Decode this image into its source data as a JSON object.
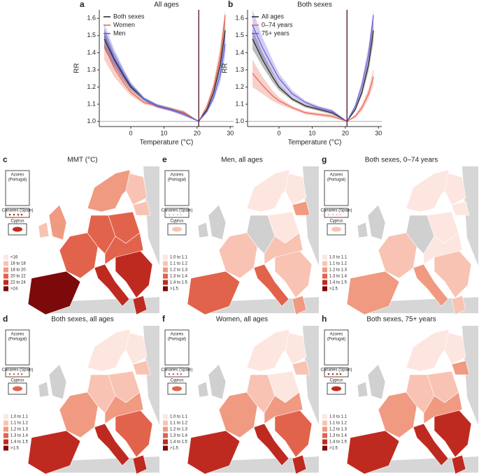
{
  "chart_data": [
    {
      "type": "line",
      "label": "a",
      "title": "All ages",
      "xlabel": "Temperature (°C)",
      "ylabel": "RR",
      "x": [
        -8,
        -5,
        -2,
        0,
        4,
        8,
        12,
        16,
        20.5,
        23,
        25,
        27,
        28.5
      ],
      "xlim": [
        -9.5,
        31
      ],
      "xticks": [
        0,
        10,
        20,
        30
      ],
      "ylim": [
        0.97,
        1.65
      ],
      "yticks": [
        {
          "value": 1,
          "label": "1.0"
        },
        1.1,
        1.2,
        1.3,
        1.4,
        1.5,
        1.6
      ],
      "reference_x": 20.5,
      "reference_y": 1,
      "series": [
        {
          "name": "Both sexes",
          "color": "#222222",
          "values": [
            1.48,
            1.36,
            1.26,
            1.2,
            1.13,
            1.09,
            1.07,
            1.05,
            1.0,
            1.07,
            1.17,
            1.33,
            1.53
          ],
          "lower": [
            1.42,
            1.32,
            1.23,
            1.18,
            1.12,
            1.08,
            1.06,
            1.04,
            1.0,
            1.06,
            1.15,
            1.29,
            1.46
          ],
          "upper": [
            1.54,
            1.4,
            1.29,
            1.22,
            1.14,
            1.1,
            1.08,
            1.06,
            1.0,
            1.08,
            1.19,
            1.37,
            1.6
          ]
        },
        {
          "name": "Women",
          "color": "#e8604c",
          "values": [
            1.44,
            1.31,
            1.22,
            1.17,
            1.11,
            1.09,
            1.07,
            1.05,
            1.0,
            1.09,
            1.2,
            1.38,
            1.62
          ],
          "lower": [
            1.36,
            1.26,
            1.19,
            1.15,
            1.1,
            1.08,
            1.06,
            1.04,
            1.0,
            1.08,
            1.17,
            1.32,
            1.52
          ],
          "upper": [
            1.52,
            1.36,
            1.25,
            1.19,
            1.12,
            1.1,
            1.08,
            1.06,
            1.0,
            1.1,
            1.23,
            1.44,
            1.65
          ]
        },
        {
          "name": "Men",
          "color": "#5a5ae6",
          "values": [
            1.5,
            1.37,
            1.27,
            1.21,
            1.13,
            1.09,
            1.07,
            1.04,
            1.0,
            1.06,
            1.14,
            1.27,
            1.45
          ],
          "lower": [
            1.43,
            1.32,
            1.24,
            1.19,
            1.12,
            1.08,
            1.06,
            1.03,
            1.0,
            1.05,
            1.12,
            1.23,
            1.38
          ],
          "upper": [
            1.57,
            1.42,
            1.3,
            1.23,
            1.14,
            1.1,
            1.08,
            1.05,
            1.0,
            1.07,
            1.16,
            1.31,
            1.52
          ]
        }
      ]
    },
    {
      "type": "line",
      "label": "b",
      "title": "Both sexes",
      "xlabel": "Temperature (°C)",
      "ylabel": "RR",
      "x": [
        -8,
        -5,
        -2,
        0,
        4,
        8,
        12,
        16,
        20.5,
        23,
        25,
        27,
        28.5
      ],
      "xlim": [
        -9.5,
        31
      ],
      "xticks": [
        0,
        10,
        20,
        30
      ],
      "ylim": [
        0.97,
        1.65
      ],
      "yticks": [
        {
          "value": 1,
          "label": "1.0"
        },
        1.1,
        1.2,
        1.3,
        1.4,
        1.5,
        1.6
      ],
      "reference_x": 20.5,
      "reference_y": 1,
      "series": [
        {
          "name": "All ages",
          "color": "#222222",
          "values": [
            1.48,
            1.36,
            1.26,
            1.2,
            1.13,
            1.09,
            1.07,
            1.05,
            1.0,
            1.07,
            1.17,
            1.33,
            1.53
          ],
          "lower": [
            1.42,
            1.32,
            1.23,
            1.18,
            1.12,
            1.08,
            1.06,
            1.04,
            1.0,
            1.06,
            1.15,
            1.29,
            1.46
          ],
          "upper": [
            1.54,
            1.4,
            1.29,
            1.22,
            1.14,
            1.1,
            1.08,
            1.06,
            1.0,
            1.08,
            1.19,
            1.37,
            1.6
          ]
        },
        {
          "name": "0–74 years",
          "color": "#e8604c",
          "values": [
            1.28,
            1.21,
            1.15,
            1.12,
            1.08,
            1.05,
            1.04,
            1.03,
            1.0,
            1.03,
            1.08,
            1.16,
            1.26
          ],
          "lower": [
            1.2,
            1.16,
            1.12,
            1.1,
            1.07,
            1.04,
            1.03,
            1.02,
            1.0,
            1.02,
            1.06,
            1.13,
            1.21
          ],
          "upper": [
            1.36,
            1.26,
            1.18,
            1.14,
            1.09,
            1.06,
            1.05,
            1.04,
            1.0,
            1.04,
            1.1,
            1.19,
            1.31
          ]
        },
        {
          "name": "75+ years",
          "color": "#6a5cd8",
          "values": [
            1.56,
            1.43,
            1.32,
            1.25,
            1.16,
            1.11,
            1.08,
            1.06,
            1.0,
            1.09,
            1.21,
            1.39,
            1.62
          ],
          "lower": [
            1.47,
            1.37,
            1.28,
            1.22,
            1.14,
            1.1,
            1.07,
            1.05,
            1.0,
            1.08,
            1.18,
            1.34,
            1.54
          ],
          "upper": [
            1.65,
            1.49,
            1.36,
            1.28,
            1.18,
            1.12,
            1.09,
            1.07,
            1.0,
            1.1,
            1.24,
            1.44,
            1.65
          ]
        }
      ]
    }
  ],
  "maps": [
    {
      "label": "c",
      "title": "MMT (°C)",
      "insets": [
        "Azores",
        "(Portugal)",
        "Canaries (Spain)",
        "Cyprus"
      ],
      "legend": [
        {
          "label": "<16",
          "color": "#fde6df"
        },
        {
          "label": "16 to 18",
          "color": "#f8c3b3"
        },
        {
          "label": "18 to 20",
          "color": "#f09a82"
        },
        {
          "label": "20 to 22",
          "color": "#e2634c"
        },
        {
          "label": "22 to 24",
          "color": "#bf2a20"
        },
        {
          "label": ">24",
          "color": "#7c0a0a"
        }
      ]
    },
    {
      "label": "d",
      "title": "Both sexes, all ages",
      "insets": [
        "Azores",
        "(Portugal)",
        "Canaries (Spain)",
        "Cyprus"
      ],
      "legend": [
        {
          "label": "1.0 to 1.1",
          "color": "#fde6df"
        },
        {
          "label": "1.1 to 1.2",
          "color": "#f8c3b3"
        },
        {
          "label": "1.2 to 1.3",
          "color": "#f09a82"
        },
        {
          "label": "1.3 to 1.4",
          "color": "#e2634c"
        },
        {
          "label": "1.4 to 1.5",
          "color": "#bf2a20"
        },
        {
          "label": ">1.5",
          "color": "#7c0a0a"
        }
      ]
    },
    {
      "label": "e",
      "title": "Men, all ages",
      "insets": [
        "Azores",
        "(Portugal)",
        "Canaries (Spain)",
        "Cyprus"
      ],
      "legend": [
        {
          "label": "1.0 to 1.1",
          "color": "#fde6df"
        },
        {
          "label": "1.1 to 1.2",
          "color": "#f8c3b3"
        },
        {
          "label": "1.2 to 1.3",
          "color": "#f09a82"
        },
        {
          "label": "1.3 to 1.4",
          "color": "#e2634c"
        },
        {
          "label": "1.4 to 1.5",
          "color": "#bf2a20"
        },
        {
          "label": ">1.5",
          "color": "#7c0a0a"
        }
      ]
    },
    {
      "label": "f",
      "title": "Women, all ages",
      "insets": [
        "Azores",
        "(Portugal)",
        "Canaries (Spain)",
        "Cyprus"
      ],
      "legend": [
        {
          "label": "1.0 to 1.1",
          "color": "#fde6df"
        },
        {
          "label": "1.1 to 1.2",
          "color": "#f8c3b3"
        },
        {
          "label": "1.2 to 1.3",
          "color": "#f09a82"
        },
        {
          "label": "1.3 to 1.4",
          "color": "#e2634c"
        },
        {
          "label": "1.4 to 1.5",
          "color": "#bf2a20"
        },
        {
          "label": ">1.5",
          "color": "#7c0a0a"
        }
      ]
    },
    {
      "label": "g",
      "title": "Both sexes, 0–74 years",
      "insets": [
        "Azores",
        "(Portugal)",
        "Canaries (Spain)",
        "Cyprus"
      ],
      "legend": [
        {
          "label": "1.0 to 1.1",
          "color": "#fde6df"
        },
        {
          "label": "1.1 to 1.2",
          "color": "#f8c3b3"
        },
        {
          "label": "1.2 to 1.3",
          "color": "#f09a82"
        },
        {
          "label": "1.3 to 1.4",
          "color": "#e2634c"
        },
        {
          "label": "1.4 to 1.5",
          "color": "#bf2a20"
        },
        {
          "label": ">1.5",
          "color": "#7c0a0a"
        }
      ]
    },
    {
      "label": "h",
      "title": "Both sexes, 75+ years",
      "insets": [
        "Azores",
        "(Portugal)",
        "Canaries (Spain)",
        "Cyprus"
      ],
      "legend": [
        {
          "label": "1.0 to 1.1",
          "color": "#fde6df"
        },
        {
          "label": "1.1 to 1.2",
          "color": "#f8c3b3"
        },
        {
          "label": "1.2 to 1.3",
          "color": "#f09a82"
        },
        {
          "label": "1.3 to 1.4",
          "color": "#e2634c"
        },
        {
          "label": "1.4 to 1.5",
          "color": "#bf2a20"
        },
        {
          "label": ">1.5",
          "color": "#7c0a0a"
        }
      ]
    }
  ]
}
